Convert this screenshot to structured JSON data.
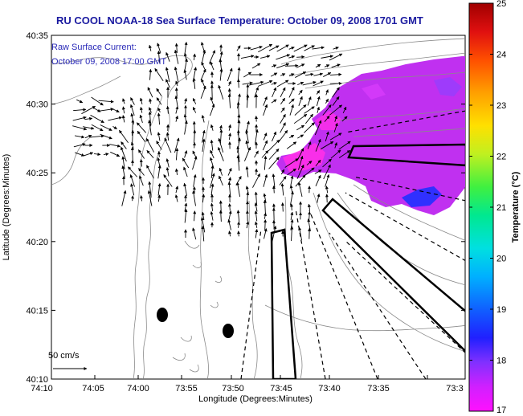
{
  "title": "RU COOL  NOAA-18  Sea Surface Temperature:  October 09, 2008 1701 GMT",
  "current_label": "Raw Surface Current:",
  "current_time": "October 09, 2008 17:00 GMT",
  "scale_label": "50 cm/s",
  "x_axis": {
    "label": "Longitude (Degrees:Minutes)",
    "ticks": [
      "74:10",
      "74:05",
      "74:00",
      "73:55",
      "73:50",
      "73:45",
      "73:40",
      "73:35",
      "73:3"
    ]
  },
  "y_axis": {
    "label": "Latitude (Degrees:Minutes)",
    "ticks": [
      "40:35",
      "40:30",
      "40:25",
      "40:20",
      "40:15",
      "40:10"
    ]
  },
  "colorbar": {
    "label": "Temperature (°C)",
    "ticks": [
      "25",
      "24",
      "23",
      "22",
      "21",
      "20",
      "19",
      "18",
      "17"
    ],
    "min": 17,
    "max": 25
  },
  "colors": {
    "title": "#1a1aa0",
    "sst_warm": "#c030f0",
    "sst_hot": "#ff30e8",
    "sst_cool": "#3030ff"
  }
}
